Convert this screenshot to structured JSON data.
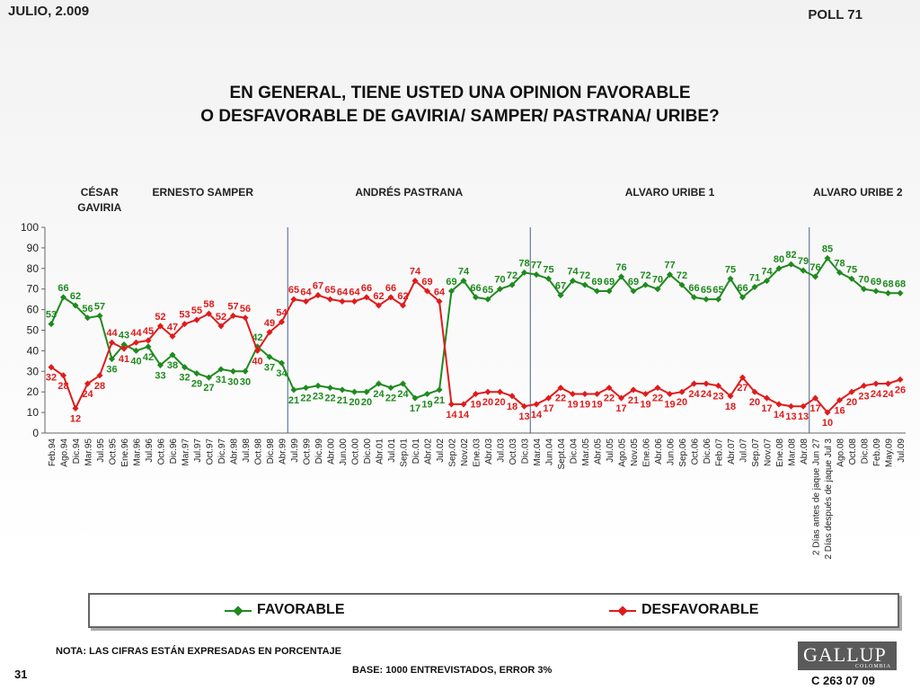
{
  "header": {
    "date": "JULIO, 2.009",
    "poll": "POLL 71",
    "title_line1": "EN GENERAL, TIENE USTED UNA OPINION FAVORABLE",
    "title_line2": "O DESFAVORABLE DE  GAVIRIA/ SAMPER/ PASTRANA/ URIBE?"
  },
  "footer": {
    "note": "NOTA: LAS CIFRAS ESTÁN EXPRESADAS EN PORCENTAJE",
    "base": "BASE: 1000 ENTREVISTADOS, ERROR 3%",
    "page": "31",
    "code": "C 263 07 09",
    "logo_text": "GALLUP",
    "logo_sub": "COLOMBIA"
  },
  "colors": {
    "favorable": "#1e8a1e",
    "desfavorable": "#e01b1b",
    "highlight_light": "#cfe3b8",
    "highlight_dark": "#6ab23a"
  },
  "chart_data": {
    "type": "line",
    "ylim": [
      0,
      100
    ],
    "yticks": [
      0,
      10,
      20,
      30,
      40,
      50,
      60,
      70,
      80,
      90,
      100
    ],
    "grid": false,
    "legend": "bottom",
    "periods": [
      {
        "label": "CÉSAR GAVIRIA",
        "start": 0
      },
      {
        "label": "ERNESTO SAMPER",
        "start": 6
      },
      {
        "label": "ANDRÉS  PASTRANA",
        "start": 20
      },
      {
        "label": "ALVARO URIBE 1",
        "start": 40
      },
      {
        "label": "ALVARO URIBE 2",
        "start": 63
      }
    ],
    "dividers_after": [
      19,
      39,
      62
    ],
    "highlight_categories": [
      76,
      77
    ],
    "categories": [
      "Feb.94",
      "Ago.94",
      "Dic.94",
      "Mar.95",
      "Jul.95",
      "Oct.95",
      "Ene.96",
      "Mar.96",
      "Jul.96",
      "Oct.96",
      "Dic.96",
      "Mar.97",
      "Jul.97",
      "Oct.97",
      "Dic.97",
      "Abr.98",
      "Jul.98",
      "Oct.98",
      "Dic.98",
      "Abr.99",
      "Jul.99",
      "Oct.99",
      "Dic.99",
      "Abr.00",
      "Jun.00",
      "Oct.00",
      "Dic.00",
      "Abr.01",
      "Jul.01",
      "Sep.01",
      "Dic.01",
      "Abr.02",
      "Jul.02",
      "Sep.02",
      "Nov.02",
      "Ene.03",
      "Abr.03",
      "Jul.03",
      "Oct.03",
      "Dic.03",
      "Mar.04",
      "Jun.04",
      "Sept.04",
      "Dic.04",
      "Mar.05",
      "Abr.05",
      "Jul.05",
      "Ago.05",
      "Nov.05",
      "Ene.06",
      "Abr.06",
      "Jun.06",
      "Sep.06",
      "Oct.06",
      "Dic.06",
      "Feb.07",
      "Abr.07",
      "Jul.07",
      "Sep.07",
      "Nov.07",
      "Ene.08",
      "Mar.08",
      "Abr.08",
      "2 Días antes de jaque Jun 27",
      "2 Días después de jaque Jul 3",
      "Ago.08",
      "Oct.08",
      "Dic.08",
      "Feb.09",
      "May.09",
      "Jul.09"
    ],
    "series": [
      {
        "name": "FAVORABLE",
        "values": [
          53,
          66,
          62,
          56,
          57,
          36,
          43,
          40,
          42,
          33,
          38,
          32,
          29,
          27,
          31,
          30,
          30,
          42,
          37,
          34,
          21,
          22,
          23,
          22,
          21,
          20,
          20,
          24,
          22,
          24,
          17,
          19,
          21,
          69,
          74,
          66,
          65,
          70,
          72,
          78,
          77,
          75,
          67,
          74,
          72,
          69,
          69,
          76,
          69,
          72,
          70,
          77,
          72,
          66,
          65,
          65,
          75,
          66,
          71,
          74,
          80,
          82,
          79,
          76,
          85,
          78,
          75,
          70,
          69,
          68,
          68
        ]
      },
      {
        "name": "DESFAVORABLE",
        "values": [
          32,
          28,
          12,
          24,
          28,
          44,
          41,
          44,
          45,
          52,
          47,
          53,
          55,
          58,
          52,
          57,
          56,
          40,
          49,
          54,
          65,
          64,
          67,
          65,
          64,
          64,
          66,
          62,
          66,
          62,
          74,
          69,
          64,
          14,
          14,
          19,
          20,
          20,
          18,
          13,
          14,
          17,
          22,
          19,
          19,
          19,
          22,
          17,
          21,
          19,
          22,
          19,
          20,
          24,
          24,
          23,
          18,
          27,
          20,
          17,
          14,
          13,
          13,
          17,
          10,
          16,
          20,
          23,
          24,
          24,
          26
        ]
      }
    ]
  }
}
